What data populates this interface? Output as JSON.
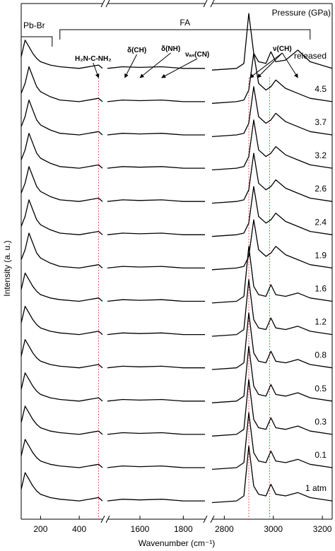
{
  "chart_data": {
    "type": "line",
    "xlabel": "Wavenumber (cm⁻¹)",
    "ylabel": "Intensity (a. u.)",
    "legend_title": "Pressure (GPa)",
    "x_segments": [
      {
        "xlim": [
          100,
          520
        ],
        "xticks": [
          200,
          400
        ]
      },
      {
        "xlim": [
          1450,
          1900
        ],
        "xticks": [
          1600,
          1800
        ]
      },
      {
        "xlim": [
          2750,
          3240
        ],
        "xticks": [
          2800,
          3000,
          3200
        ]
      }
    ],
    "ylim": [
      0,
      15.5
    ],
    "x": [
      100,
      120,
      140,
      160,
      180,
      200,
      250,
      300,
      400,
      500,
      520,
      1450,
      1520,
      1600,
      1700,
      1800,
      1900,
      2750,
      2850,
      2880,
      2900,
      2920,
      2940,
      2970,
      2990,
      3010,
      3050,
      3100,
      3150,
      3240
    ],
    "marker_lines": {
      "color": "#e03030",
      "x": [
        500,
        2900,
        2985
      ]
    },
    "brackets": [
      {
        "label": "Pb-Br",
        "range": [
          100,
          260
        ]
      },
      {
        "label": "FA",
        "range": [
          300,
          3150
        ]
      }
    ],
    "annotations": [
      {
        "text": "H₂N-C-NH₂",
        "x": [
          500
        ]
      },
      {
        "text": "δ(CH)",
        "x": [
          1530
        ]
      },
      {
        "text": "δ(NH)",
        "x": [
          1600
        ]
      },
      {
        "text": "νₐₛ(CN)",
        "x": [
          1700
        ]
      },
      {
        "text": "ν(CH)",
        "x": [
          2905,
          2935,
          3100
        ]
      }
    ],
    "series": [
      {
        "name": "1 atm",
        "color": "#000",
        "values": [
          0.9,
          1.4,
          1.2,
          1.0,
          0.85,
          0.75,
          0.65,
          0.6,
          0.55,
          0.65,
          0.55,
          0.55,
          0.6,
          0.58,
          0.6,
          0.55,
          0.55,
          0.5,
          0.55,
          0.7,
          2.2,
          1.0,
          0.75,
          0.7,
          1.05,
          0.75,
          0.7,
          0.8,
          0.65,
          0.55
        ]
      },
      {
        "name": "0.1",
        "color": "#000",
        "values": [
          1.9,
          2.4,
          2.2,
          2.0,
          1.85,
          1.75,
          1.65,
          1.6,
          1.55,
          1.65,
          1.55,
          1.55,
          1.6,
          1.58,
          1.6,
          1.55,
          1.55,
          1.5,
          1.55,
          1.7,
          3.2,
          2.0,
          1.75,
          1.7,
          2.05,
          1.75,
          1.7,
          1.8,
          1.65,
          1.55
        ]
      },
      {
        "name": "0.3",
        "color": "#000",
        "values": [
          2.9,
          3.4,
          3.2,
          3.0,
          2.85,
          2.75,
          2.65,
          2.6,
          2.55,
          2.65,
          2.55,
          2.55,
          2.6,
          2.58,
          2.6,
          2.55,
          2.55,
          2.5,
          2.55,
          2.7,
          4.2,
          3.0,
          2.75,
          2.7,
          3.05,
          2.75,
          2.7,
          2.8,
          2.65,
          2.55
        ]
      },
      {
        "name": "0.5",
        "color": "#000",
        "values": [
          3.9,
          4.4,
          4.2,
          4.0,
          3.85,
          3.75,
          3.65,
          3.6,
          3.55,
          3.65,
          3.55,
          3.55,
          3.6,
          3.58,
          3.6,
          3.55,
          3.55,
          3.5,
          3.55,
          3.7,
          5.2,
          4.0,
          3.75,
          3.7,
          4.05,
          3.75,
          3.7,
          3.8,
          3.65,
          3.55
        ]
      },
      {
        "name": "0.8",
        "color": "#000",
        "values": [
          4.9,
          5.4,
          5.2,
          5.0,
          4.85,
          4.75,
          4.65,
          4.6,
          4.55,
          4.65,
          4.55,
          4.55,
          4.6,
          4.58,
          4.6,
          4.55,
          4.55,
          4.5,
          4.55,
          4.7,
          6.2,
          5.0,
          4.75,
          4.7,
          5.05,
          4.75,
          4.7,
          4.8,
          4.65,
          4.55
        ]
      },
      {
        "name": "1.2",
        "color": "#000",
        "values": [
          5.9,
          6.4,
          6.2,
          6.0,
          5.85,
          5.75,
          5.65,
          5.6,
          5.55,
          5.65,
          5.55,
          5.55,
          5.6,
          5.58,
          5.6,
          5.55,
          5.55,
          5.5,
          5.55,
          5.7,
          7.2,
          6.0,
          5.75,
          5.7,
          6.05,
          5.75,
          5.7,
          5.8,
          5.65,
          5.55
        ]
      },
      {
        "name": "1.6",
        "color": "#000",
        "values": [
          6.9,
          7.4,
          7.2,
          7.0,
          6.85,
          6.75,
          6.65,
          6.6,
          6.55,
          6.65,
          6.55,
          6.55,
          6.6,
          6.58,
          6.6,
          6.55,
          6.55,
          6.5,
          6.55,
          6.7,
          8.2,
          7.0,
          6.75,
          6.7,
          7.05,
          6.75,
          6.7,
          6.8,
          6.65,
          6.55
        ]
      },
      {
        "name": "1.9",
        "color": "#000",
        "values": [
          7.8,
          8.1,
          8.6,
          8.3,
          8.0,
          7.85,
          7.7,
          7.6,
          7.55,
          7.65,
          7.55,
          7.55,
          7.6,
          7.58,
          7.6,
          7.55,
          7.55,
          7.5,
          7.55,
          7.6,
          7.9,
          9.0,
          8.1,
          7.9,
          8.0,
          8.2,
          7.95,
          7.8,
          7.65,
          7.55
        ]
      },
      {
        "name": "2.4",
        "color": "#000",
        "values": [
          8.8,
          9.1,
          9.6,
          9.3,
          9.0,
          8.85,
          8.7,
          8.6,
          8.55,
          8.65,
          8.55,
          8.55,
          8.6,
          8.58,
          8.6,
          8.55,
          8.55,
          8.5,
          8.55,
          8.6,
          8.9,
          10.0,
          9.1,
          8.9,
          9.0,
          9.2,
          8.95,
          8.8,
          8.65,
          8.55
        ]
      },
      {
        "name": "2.6",
        "color": "#000",
        "values": [
          9.8,
          10.1,
          10.6,
          10.3,
          10.0,
          9.85,
          9.7,
          9.6,
          9.55,
          9.65,
          9.55,
          9.55,
          9.6,
          9.58,
          9.6,
          9.55,
          9.55,
          9.5,
          9.55,
          9.6,
          9.9,
          11.0,
          10.1,
          9.9,
          10.0,
          10.2,
          9.95,
          9.8,
          9.65,
          9.55
        ]
      },
      {
        "name": "3.2",
        "color": "#000",
        "values": [
          10.8,
          11.1,
          11.6,
          11.3,
          11.0,
          10.85,
          10.7,
          10.6,
          10.55,
          10.65,
          10.55,
          10.55,
          10.6,
          10.58,
          10.6,
          10.55,
          10.55,
          10.5,
          10.55,
          10.6,
          10.9,
          12.0,
          11.1,
          10.9,
          11.0,
          11.2,
          10.95,
          10.8,
          10.65,
          10.55
        ]
      },
      {
        "name": "3.7",
        "color": "#000",
        "values": [
          11.8,
          12.1,
          12.6,
          12.3,
          12.0,
          11.85,
          11.7,
          11.6,
          11.55,
          11.65,
          11.55,
          11.55,
          11.6,
          11.58,
          11.6,
          11.55,
          11.55,
          11.5,
          11.55,
          11.6,
          11.9,
          13.0,
          12.1,
          11.9,
          12.0,
          12.2,
          11.95,
          11.8,
          11.65,
          11.55
        ]
      },
      {
        "name": "4.5",
        "color": "#000",
        "values": [
          12.8,
          13.1,
          13.6,
          13.3,
          13.0,
          12.85,
          12.7,
          12.6,
          12.55,
          12.65,
          12.55,
          12.55,
          12.6,
          12.58,
          12.6,
          12.55,
          12.55,
          12.5,
          12.55,
          12.6,
          12.9,
          14.0,
          13.1,
          12.9,
          13.0,
          13.2,
          12.95,
          12.8,
          12.65,
          12.55
        ]
      },
      {
        "name": "released",
        "color": "#000",
        "values": [
          13.9,
          14.4,
          14.2,
          14.0,
          13.85,
          13.75,
          13.65,
          13.6,
          13.55,
          13.65,
          13.55,
          13.55,
          13.6,
          13.58,
          13.6,
          13.55,
          13.55,
          13.5,
          13.55,
          13.7,
          15.2,
          14.0,
          13.75,
          13.7,
          14.05,
          13.75,
          13.8,
          14.1,
          13.75,
          13.55
        ]
      }
    ]
  }
}
